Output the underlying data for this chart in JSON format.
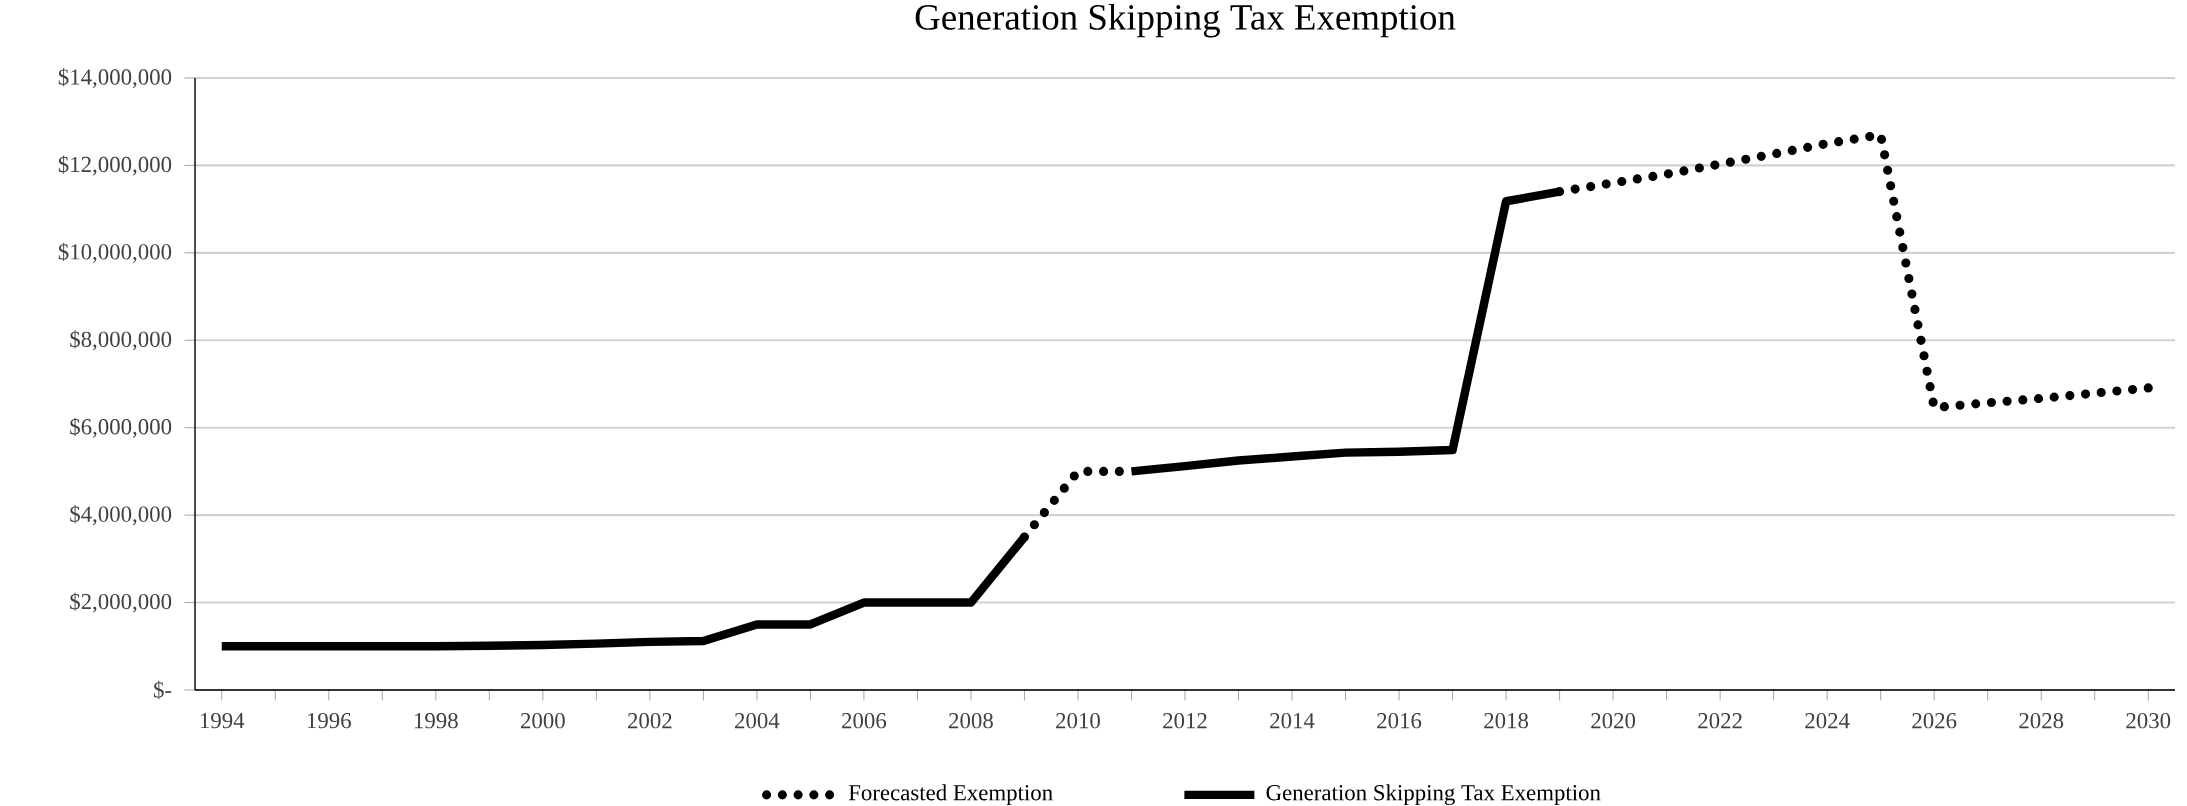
{
  "chart_data": {
    "type": "line",
    "title": "Generation Skipping Tax Exemption",
    "x": [
      1994,
      1995,
      1996,
      1997,
      1998,
      1999,
      2000,
      2001,
      2002,
      2003,
      2004,
      2005,
      2006,
      2007,
      2008,
      2009,
      2010,
      2011,
      2012,
      2013,
      2014,
      2015,
      2016,
      2017,
      2018,
      2019,
      2020,
      2021,
      2022,
      2023,
      2024,
      2025,
      2026,
      2027,
      2028,
      2029,
      2030
    ],
    "series": [
      {
        "name": "Forecasted Exemption",
        "color": "#000000",
        "line_style": "dotted",
        "values": [
          null,
          null,
          null,
          null,
          null,
          null,
          null,
          null,
          null,
          null,
          null,
          null,
          null,
          null,
          null,
          3500000,
          5000000,
          5000000,
          null,
          null,
          null,
          null,
          null,
          null,
          null,
          11400000,
          11600000,
          11800000,
          12030000,
          12260000,
          12500000,
          12700000,
          6460000,
          6570000,
          6670000,
          6790000,
          6910000
        ]
      },
      {
        "name": "Generation Skipping Tax Exemption",
        "color": "#000000",
        "line_style": "solid",
        "values": [
          1000000,
          1000000,
          1000000,
          1000000,
          1000000,
          1010000,
          1030000,
          1060000,
          1100000,
          1120000,
          1500000,
          1500000,
          2000000,
          2000000,
          2000000,
          3500000,
          null,
          5000000,
          5120000,
          5250000,
          5340000,
          5430000,
          5450000,
          5490000,
          11180000,
          11400000,
          null,
          null,
          null,
          null,
          null,
          null,
          null,
          null,
          null,
          null,
          null
        ]
      }
    ],
    "xlim": [
      1993.5,
      2030.5
    ],
    "ylim": [
      0,
      14000000
    ],
    "xticks": [
      1994,
      {
        "value": 1995,
        "label": null
      },
      1996,
      {
        "value": 1997,
        "label": null
      },
      1998,
      {
        "value": 1999,
        "label": null
      },
      2000,
      {
        "value": 2001,
        "label": null
      },
      2002,
      {
        "value": 2003,
        "label": null
      },
      2004,
      {
        "value": 2005,
        "label": null
      },
      2006,
      {
        "value": 2007,
        "label": null
      },
      2008,
      {
        "value": 2009,
        "label": null
      },
      2010,
      {
        "value": 2011,
        "label": null
      },
      2012,
      {
        "value": 2013,
        "label": null
      },
      2014,
      {
        "value": 2015,
        "label": null
      },
      2016,
      {
        "value": 2017,
        "label": null
      },
      2018,
      {
        "value": 2019,
        "label": null
      },
      2020,
      {
        "value": 2021,
        "label": null
      },
      2022,
      {
        "value": 2023,
        "label": null
      },
      2024,
      {
        "value": 2025,
        "label": null
      },
      2026,
      {
        "value": 2027,
        "label": null
      },
      2028,
      {
        "value": 2029,
        "label": null
      },
      2030
    ],
    "yticks": [
      {
        "value": 0,
        "label": "$-"
      },
      {
        "value": 2000000,
        "label": "$2,000,000"
      },
      {
        "value": 4000000,
        "label": "$4,000,000"
      },
      {
        "value": 6000000,
        "label": "$6,000,000"
      },
      {
        "value": 8000000,
        "label": "$8,000,000"
      },
      {
        "value": 10000000,
        "label": "$10,000,000"
      },
      {
        "value": 12000000,
        "label": "$12,000,000"
      },
      {
        "value": 14000000,
        "label": "$14,000,000"
      }
    ],
    "grid": "y",
    "legend": "bottom"
  }
}
